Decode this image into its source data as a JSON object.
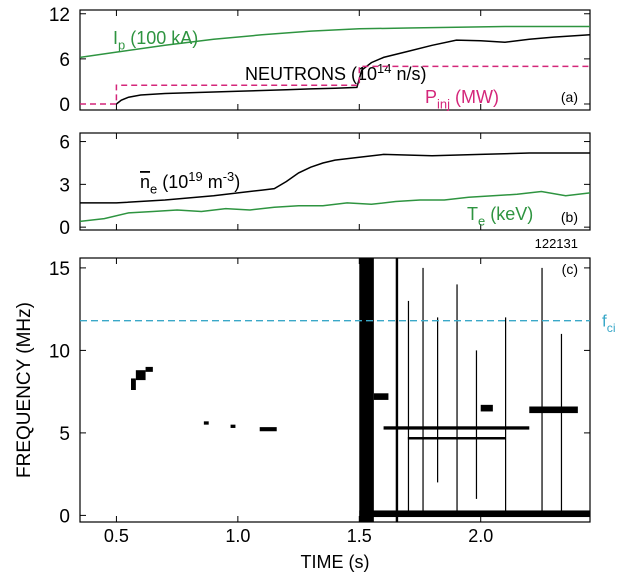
{
  "chart_data": [
    {
      "type": "line",
      "panel_label": "(a)",
      "xlim": [
        0.35,
        2.45
      ],
      "xticks": [
        0.5,
        1,
        1.5,
        2
      ],
      "ylim": [
        -0.8,
        12.5
      ],
      "yticks": [
        0,
        6,
        12
      ],
      "series": [
        {
          "name_parts": [
            {
              "text": "I"
            },
            {
              "text": "p",
              "shift": "sub"
            },
            {
              "text": " (100 kA)"
            }
          ],
          "color": "#2e9440",
          "dash": false,
          "x": [
            0.35,
            0.5,
            0.7,
            0.9,
            1.1,
            1.3,
            1.5,
            1.7,
            1.9,
            2.1,
            2.3,
            2.45
          ],
          "values": [
            6.2,
            6.9,
            7.8,
            8.6,
            9.2,
            9.7,
            10.0,
            10.1,
            10.2,
            10.3,
            10.3,
            10.3
          ]
        },
        {
          "name_parts": [
            {
              "text": "NEUTRONS (10"
            },
            {
              "text": "14",
              "shift": "super"
            },
            {
              "text": " n/s)"
            }
          ],
          "color": "#000000",
          "dash": false,
          "x": [
            0.5,
            0.52,
            0.55,
            0.6,
            0.7,
            0.8,
            0.9,
            1.0,
            1.1,
            1.2,
            1.3,
            1.4,
            1.49,
            1.51,
            1.55,
            1.6,
            1.7,
            1.8,
            1.9,
            2.0,
            2.1,
            2.2,
            2.3,
            2.45
          ],
          "values": [
            0,
            0.5,
            0.9,
            1.2,
            1.4,
            1.5,
            1.6,
            1.7,
            1.8,
            1.9,
            2.0,
            2.1,
            2.2,
            4.5,
            5.5,
            6.2,
            7.0,
            7.8,
            8.5,
            8.4,
            8.2,
            8.6,
            8.9,
            9.2
          ]
        },
        {
          "name_parts": [
            {
              "text": "P"
            },
            {
              "text": "inj",
              "shift": "sub"
            },
            {
              "text": " (MW)"
            }
          ],
          "color": "#d4267a",
          "dash": true,
          "x": [
            0.35,
            0.5,
            0.5,
            1.5,
            1.5,
            2.45
          ],
          "values": [
            0,
            0,
            2.5,
            2.5,
            5,
            5
          ]
        }
      ]
    },
    {
      "type": "line",
      "panel_label": "(b)",
      "annotation": "122131",
      "xlim": [
        0.35,
        2.45
      ],
      "xticks": [
        0.5,
        1,
        1.5,
        2
      ],
      "ylim": [
        -0.2,
        6.6
      ],
      "yticks": [
        0,
        3,
        6
      ],
      "series": [
        {
          "name_parts": [
            {
              "text": "n",
              "over": true
            },
            {
              "text": "e",
              "shift": "sub"
            },
            {
              "text": " (10"
            },
            {
              "text": "19",
              "shift": "super"
            },
            {
              "text": " m"
            },
            {
              "text": "-3",
              "shift": "super"
            },
            {
              "text": ")"
            }
          ],
          "color": "#000000",
          "dash": false,
          "x": [
            0.35,
            0.5,
            0.7,
            0.9,
            1.0,
            1.1,
            1.15,
            1.2,
            1.25,
            1.3,
            1.35,
            1.4,
            1.5,
            1.6,
            1.8,
            2.0,
            2.2,
            2.45
          ],
          "values": [
            1.7,
            1.7,
            1.9,
            2.2,
            2.4,
            2.6,
            2.7,
            3.2,
            3.8,
            4.2,
            4.5,
            4.7,
            4.9,
            5.1,
            5.0,
            5.1,
            5.2,
            5.2
          ]
        },
        {
          "name_parts": [
            {
              "text": "T"
            },
            {
              "text": "e",
              "shift": "sub"
            },
            {
              "text": " (keV)"
            }
          ],
          "color": "#2e9440",
          "dash": false,
          "x": [
            0.35,
            0.45,
            0.55,
            0.65,
            0.75,
            0.85,
            0.95,
            1.05,
            1.15,
            1.25,
            1.35,
            1.45,
            1.55,
            1.65,
            1.75,
            1.85,
            1.95,
            2.05,
            2.15,
            2.25,
            2.35,
            2.45
          ],
          "values": [
            0.4,
            0.6,
            1.0,
            1.1,
            1.2,
            1.1,
            1.3,
            1.2,
            1.4,
            1.5,
            1.5,
            1.7,
            1.6,
            1.8,
            1.9,
            1.9,
            2.1,
            2.2,
            2.3,
            2.5,
            2.2,
            2.4
          ]
        }
      ]
    },
    {
      "type": "spectrogram",
      "panel_label": "(c)",
      "x_label": "TIME (s)",
      "y_label": "FREQUENCY (MHz)",
      "xlim": [
        0.35,
        2.45
      ],
      "xticks": [
        0.5,
        {
          "value": 1,
          "label": "1.0"
        },
        1.5,
        {
          "value": 2,
          "label": "2.0"
        }
      ],
      "ylim": [
        -0.4,
        15.6
      ],
      "yticks": [
        0,
        5,
        10,
        15
      ],
      "reference_lines": [
        {
          "value": 11.8,
          "color": "#3aa8c8",
          "label_parts": [
            {
              "text": "f"
            },
            {
              "text": "ci",
              "shift": "sub"
            }
          ]
        }
      ],
      "features": [
        {
          "x": [
            0.56,
            0.58
          ],
          "y": [
            7.6,
            8.3
          ]
        },
        {
          "x": [
            0.58,
            0.62
          ],
          "y": [
            8.2,
            8.8
          ]
        },
        {
          "x": [
            0.62,
            0.65
          ],
          "y": [
            8.7,
            9.0
          ]
        },
        {
          "x": [
            0.86,
            0.88
          ],
          "y": [
            5.5,
            5.7
          ]
        },
        {
          "x": [
            0.97,
            0.99
          ],
          "y": [
            5.3,
            5.5
          ]
        },
        {
          "x": [
            1.09,
            1.16
          ],
          "y": [
            5.1,
            5.35
          ]
        },
        {
          "x": [
            1.5,
            1.56
          ],
          "y": [
            -0.4,
            15.6
          ]
        },
        {
          "x": [
            1.56,
            1.62
          ],
          "y": [
            7.0,
            7.4
          ]
        },
        {
          "x": [
            1.65,
            1.66
          ],
          "y": [
            -0.4,
            15.6
          ]
        },
        {
          "x": [
            1.7,
            1.705
          ],
          "y": [
            0,
            13
          ]
        },
        {
          "x": [
            1.76,
            1.765
          ],
          "y": [
            0,
            15
          ]
        },
        {
          "x": [
            1.82,
            1.825
          ],
          "y": [
            2,
            12
          ]
        },
        {
          "x": [
            1.9,
            1.905
          ],
          "y": [
            0,
            14
          ]
        },
        {
          "x": [
            1.98,
            1.985
          ],
          "y": [
            1,
            10
          ]
        },
        {
          "x": [
            2.0,
            2.05
          ],
          "y": [
            6.3,
            6.7
          ]
        },
        {
          "x": [
            2.1,
            2.105
          ],
          "y": [
            0,
            12
          ]
        },
        {
          "x": [
            2.2,
            2.4
          ],
          "y": [
            6.2,
            6.6
          ]
        },
        {
          "x": [
            2.25,
            2.255
          ],
          "y": [
            0,
            15
          ]
        },
        {
          "x": [
            2.33,
            2.335
          ],
          "y": [
            0,
            11
          ]
        },
        {
          "x": [
            1.5,
            2.45
          ],
          "y": [
            -0.1,
            0.3
          ]
        },
        {
          "x": [
            1.6,
            2.2
          ],
          "y": [
            5.2,
            5.4
          ]
        },
        {
          "x": [
            1.7,
            2.1
          ],
          "y": [
            4.6,
            4.75
          ]
        }
      ]
    }
  ]
}
